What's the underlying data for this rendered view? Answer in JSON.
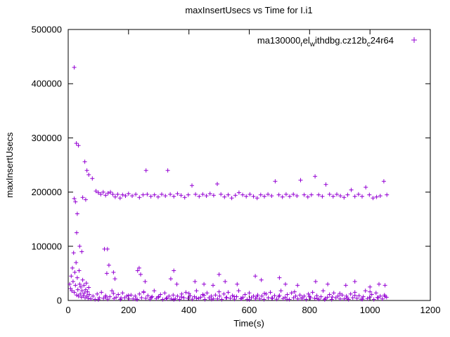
{
  "chart_data": {
    "type": "scatter",
    "title": "maxInsertUsecs vs Time for I.i1",
    "xlabel": "Time(s)",
    "ylabel": "maxInsertUsecs",
    "xlim": [
      0,
      1200
    ],
    "ylim": [
      0,
      500000
    ],
    "xticks": [
      0,
      200,
      400,
      600,
      800,
      1000,
      1200
    ],
    "yticks": [
      0,
      100000,
      200000,
      300000,
      400000,
      500000
    ],
    "grid": false,
    "legend_position": "top-right-inside",
    "marker": "plus",
    "marker_color": "#9400d3",
    "axis_color": "#000000",
    "legend_label_plain": "ma130000_rel_withdbg.cz12b_c24r64",
    "legend_segments": [
      {
        "t": "ma130000",
        "sub": false
      },
      {
        "t": "r",
        "sub": true
      },
      {
        "t": "el",
        "sub": false
      },
      {
        "t": "w",
        "sub": true
      },
      {
        "t": "ithdbg.cz12b",
        "sub": false
      },
      {
        "t": "c",
        "sub": true
      },
      {
        "t": "24r64",
        "sub": false
      }
    ],
    "points": [
      [
        20,
        430000
      ],
      [
        27,
        290000
      ],
      [
        34,
        286000
      ],
      [
        55,
        256000
      ],
      [
        62,
        240000
      ],
      [
        20,
        188000
      ],
      [
        24,
        182000
      ],
      [
        30,
        160000
      ],
      [
        28,
        125000
      ],
      [
        38,
        100000
      ],
      [
        120,
        95000
      ],
      [
        45,
        90000
      ],
      [
        48,
        190000
      ],
      [
        58,
        186000
      ],
      [
        68,
        232000
      ],
      [
        80,
        225000
      ],
      [
        92,
        202000
      ],
      [
        100,
        199000
      ],
      [
        108,
        196000
      ],
      [
        116,
        200000
      ],
      [
        124,
        194000
      ],
      [
        132,
        198000
      ],
      [
        140,
        200000
      ],
      [
        148,
        196000
      ],
      [
        156,
        191000
      ],
      [
        164,
        196000
      ],
      [
        172,
        189000
      ],
      [
        180,
        195000
      ],
      [
        190,
        193000
      ],
      [
        200,
        197000
      ],
      [
        212,
        193000
      ],
      [
        224,
        196000
      ],
      [
        236,
        190000
      ],
      [
        248,
        195000
      ],
      [
        258,
        240000
      ],
      [
        262,
        196000
      ],
      [
        274,
        192000
      ],
      [
        286,
        195000
      ],
      [
        298,
        191000
      ],
      [
        310,
        196000
      ],
      [
        322,
        193000
      ],
      [
        330,
        240000
      ],
      [
        338,
        196000
      ],
      [
        350,
        192000
      ],
      [
        362,
        197000
      ],
      [
        374,
        194000
      ],
      [
        386,
        190000
      ],
      [
        398,
        195000
      ],
      [
        410,
        212000
      ],
      [
        422,
        196000
      ],
      [
        434,
        192000
      ],
      [
        446,
        196000
      ],
      [
        458,
        193000
      ],
      [
        470,
        197000
      ],
      [
        482,
        194000
      ],
      [
        494,
        215000
      ],
      [
        506,
        196000
      ],
      [
        518,
        191000
      ],
      [
        530,
        195000
      ],
      [
        542,
        189000
      ],
      [
        554,
        194000
      ],
      [
        566,
        199000
      ],
      [
        578,
        195000
      ],
      [
        590,
        192000
      ],
      [
        602,
        196000
      ],
      [
        614,
        192000
      ],
      [
        626,
        189000
      ],
      [
        638,
        195000
      ],
      [
        650,
        192000
      ],
      [
        662,
        196000
      ],
      [
        674,
        193000
      ],
      [
        686,
        220000
      ],
      [
        698,
        195000
      ],
      [
        710,
        191000
      ],
      [
        722,
        196000
      ],
      [
        734,
        192000
      ],
      [
        746,
        196000
      ],
      [
        758,
        193000
      ],
      [
        770,
        222000
      ],
      [
        782,
        195000
      ],
      [
        794,
        191000
      ],
      [
        806,
        195000
      ],
      [
        818,
        229000
      ],
      [
        830,
        195000
      ],
      [
        842,
        192000
      ],
      [
        854,
        214000
      ],
      [
        866,
        196000
      ],
      [
        878,
        192000
      ],
      [
        890,
        196000
      ],
      [
        902,
        193000
      ],
      [
        914,
        190000
      ],
      [
        926,
        195000
      ],
      [
        938,
        204000
      ],
      [
        950,
        192000
      ],
      [
        962,
        196000
      ],
      [
        974,
        192000
      ],
      [
        986,
        209000
      ],
      [
        998,
        195000
      ],
      [
        1010,
        189000
      ],
      [
        1022,
        191000
      ],
      [
        1034,
        193000
      ],
      [
        1046,
        220000
      ],
      [
        1056,
        195000
      ],
      [
        5,
        30000
      ],
      [
        8,
        22000
      ],
      [
        10,
        45000
      ],
      [
        12,
        18000
      ],
      [
        14,
        60000
      ],
      [
        16,
        35000
      ],
      [
        18,
        88000
      ],
      [
        20,
        15000
      ],
      [
        22,
        52000
      ],
      [
        24,
        28000
      ],
      [
        26,
        70000
      ],
      [
        28,
        10000
      ],
      [
        30,
        42000
      ],
      [
        32,
        20000
      ],
      [
        34,
        8000
      ],
      [
        36,
        55000
      ],
      [
        38,
        30000
      ],
      [
        40,
        12000
      ],
      [
        42,
        25000
      ],
      [
        44,
        6000
      ],
      [
        46,
        18000
      ],
      [
        48,
        38000
      ],
      [
        50,
        9000
      ],
      [
        52,
        28000
      ],
      [
        54,
        14000
      ],
      [
        56,
        5000
      ],
      [
        58,
        20000
      ],
      [
        60,
        32000
      ],
      [
        62,
        8000
      ],
      [
        64,
        16000
      ],
      [
        66,
        4000
      ],
      [
        68,
        24000
      ],
      [
        70,
        11000
      ],
      [
        130,
        95000
      ],
      [
        135,
        65000
      ],
      [
        128,
        50000
      ],
      [
        150,
        52000
      ],
      [
        155,
        40000
      ],
      [
        230,
        55000
      ],
      [
        235,
        60000
      ],
      [
        240,
        48000
      ],
      [
        255,
        35000
      ],
      [
        340,
        40000
      ],
      [
        350,
        55000
      ],
      [
        360,
        30000
      ],
      [
        420,
        35000
      ],
      [
        450,
        30000
      ],
      [
        480,
        28000
      ],
      [
        500,
        48000
      ],
      [
        520,
        35000
      ],
      [
        560,
        30000
      ],
      [
        620,
        45000
      ],
      [
        640,
        38000
      ],
      [
        700,
        42000
      ],
      [
        720,
        30000
      ],
      [
        760,
        28000
      ],
      [
        820,
        35000
      ],
      [
        860,
        30000
      ],
      [
        920,
        28000
      ],
      [
        950,
        35000
      ],
      [
        1000,
        25000
      ],
      [
        1030,
        30000
      ],
      [
        1050,
        28000
      ],
      [
        75,
        3000
      ],
      [
        82,
        8000
      ],
      [
        89,
        2000
      ],
      [
        96,
        12000
      ],
      [
        103,
        5000
      ],
      [
        110,
        15000
      ],
      [
        117,
        4000
      ],
      [
        124,
        9000
      ],
      [
        131,
        2500
      ],
      [
        138,
        7000
      ],
      [
        145,
        18000
      ],
      [
        152,
        3500
      ],
      [
        159,
        6000
      ],
      [
        166,
        11000
      ],
      [
        173,
        2000
      ],
      [
        180,
        14000
      ],
      [
        187,
        5000
      ],
      [
        194,
        8000
      ],
      [
        201,
        3000
      ],
      [
        208,
        10000
      ],
      [
        215,
        3000
      ],
      [
        222,
        8000
      ],
      [
        229,
        2000
      ],
      [
        236,
        12000
      ],
      [
        243,
        5000
      ],
      [
        250,
        15000
      ],
      [
        257,
        4000
      ],
      [
        264,
        9000
      ],
      [
        271,
        2500
      ],
      [
        278,
        7000
      ],
      [
        285,
        18000
      ],
      [
        292,
        3500
      ],
      [
        299,
        6000
      ],
      [
        306,
        11000
      ],
      [
        313,
        2000
      ],
      [
        320,
        14000
      ],
      [
        327,
        5000
      ],
      [
        334,
        8000
      ],
      [
        341,
        3000
      ],
      [
        348,
        10000
      ],
      [
        355,
        3000
      ],
      [
        362,
        8000
      ],
      [
        369,
        2000
      ],
      [
        376,
        12000
      ],
      [
        383,
        5000
      ],
      [
        390,
        15000
      ],
      [
        397,
        4000
      ],
      [
        404,
        9000
      ],
      [
        411,
        2500
      ],
      [
        418,
        7000
      ],
      [
        425,
        18000
      ],
      [
        432,
        3500
      ],
      [
        439,
        6000
      ],
      [
        446,
        11000
      ],
      [
        453,
        2000
      ],
      [
        460,
        14000
      ],
      [
        467,
        5000
      ],
      [
        474,
        8000
      ],
      [
        481,
        3000
      ],
      [
        488,
        10000
      ],
      [
        495,
        3000
      ],
      [
        502,
        8000
      ],
      [
        509,
        2000
      ],
      [
        516,
        12000
      ],
      [
        523,
        5000
      ],
      [
        530,
        15000
      ],
      [
        537,
        4000
      ],
      [
        544,
        9000
      ],
      [
        551,
        2500
      ],
      [
        558,
        7000
      ],
      [
        565,
        18000
      ],
      [
        572,
        3500
      ],
      [
        579,
        6000
      ],
      [
        586,
        11000
      ],
      [
        593,
        2000
      ],
      [
        600,
        14000
      ],
      [
        607,
        5000
      ],
      [
        614,
        8000
      ],
      [
        621,
        3000
      ],
      [
        628,
        10000
      ],
      [
        635,
        3000
      ],
      [
        642,
        8000
      ],
      [
        649,
        2000
      ],
      [
        656,
        12000
      ],
      [
        663,
        5000
      ],
      [
        670,
        15000
      ],
      [
        677,
        4000
      ],
      [
        684,
        9000
      ],
      [
        691,
        2500
      ],
      [
        698,
        7000
      ],
      [
        705,
        18000
      ],
      [
        712,
        3500
      ],
      [
        719,
        6000
      ],
      [
        726,
        11000
      ],
      [
        733,
        2000
      ],
      [
        740,
        14000
      ],
      [
        747,
        5000
      ],
      [
        754,
        8000
      ],
      [
        761,
        3000
      ],
      [
        768,
        10000
      ],
      [
        775,
        3000
      ],
      [
        782,
        8000
      ],
      [
        789,
        2000
      ],
      [
        796,
        12000
      ],
      [
        803,
        5000
      ],
      [
        810,
        15000
      ],
      [
        817,
        4000
      ],
      [
        824,
        9000
      ],
      [
        831,
        2500
      ],
      [
        838,
        7000
      ],
      [
        845,
        18000
      ],
      [
        852,
        3500
      ],
      [
        859,
        6000
      ],
      [
        866,
        11000
      ],
      [
        873,
        2000
      ],
      [
        880,
        14000
      ],
      [
        887,
        5000
      ],
      [
        894,
        8000
      ],
      [
        901,
        3000
      ],
      [
        908,
        10000
      ],
      [
        915,
        3000
      ],
      [
        922,
        8000
      ],
      [
        929,
        2000
      ],
      [
        936,
        12000
      ],
      [
        943,
        5000
      ],
      [
        950,
        15000
      ],
      [
        957,
        4000
      ],
      [
        964,
        9000
      ],
      [
        971,
        2500
      ],
      [
        978,
        7000
      ],
      [
        985,
        18000
      ],
      [
        992,
        3500
      ],
      [
        999,
        6000
      ],
      [
        1006,
        11000
      ],
      [
        1013,
        2000
      ],
      [
        1020,
        14000
      ],
      [
        1027,
        5000
      ],
      [
        1034,
        8000
      ],
      [
        1041,
        3000
      ],
      [
        1048,
        10000
      ],
      [
        1055,
        6000
      ],
      [
        100,
        1500
      ],
      [
        125,
        6500
      ],
      [
        150,
        13000
      ],
      [
        175,
        4500
      ],
      [
        200,
        9500
      ],
      [
        225,
        2200
      ],
      [
        250,
        16000
      ],
      [
        275,
        5500
      ],
      [
        300,
        7500
      ],
      [
        325,
        3200
      ],
      [
        350,
        1500
      ],
      [
        375,
        6500
      ],
      [
        400,
        13000
      ],
      [
        425,
        4500
      ],
      [
        450,
        9500
      ],
      [
        475,
        2200
      ],
      [
        500,
        16000
      ],
      [
        525,
        5500
      ],
      [
        550,
        7500
      ],
      [
        575,
        3200
      ],
      [
        600,
        1500
      ],
      [
        625,
        6500
      ],
      [
        650,
        13000
      ],
      [
        675,
        4500
      ],
      [
        700,
        9500
      ],
      [
        725,
        2200
      ],
      [
        750,
        16000
      ],
      [
        775,
        5500
      ],
      [
        800,
        7500
      ],
      [
        825,
        3200
      ],
      [
        850,
        1500
      ],
      [
        875,
        6500
      ],
      [
        900,
        13000
      ],
      [
        925,
        4500
      ],
      [
        950,
        9500
      ],
      [
        975,
        2200
      ],
      [
        1000,
        16000
      ],
      [
        1025,
        5500
      ],
      [
        1050,
        7500
      ]
    ]
  }
}
